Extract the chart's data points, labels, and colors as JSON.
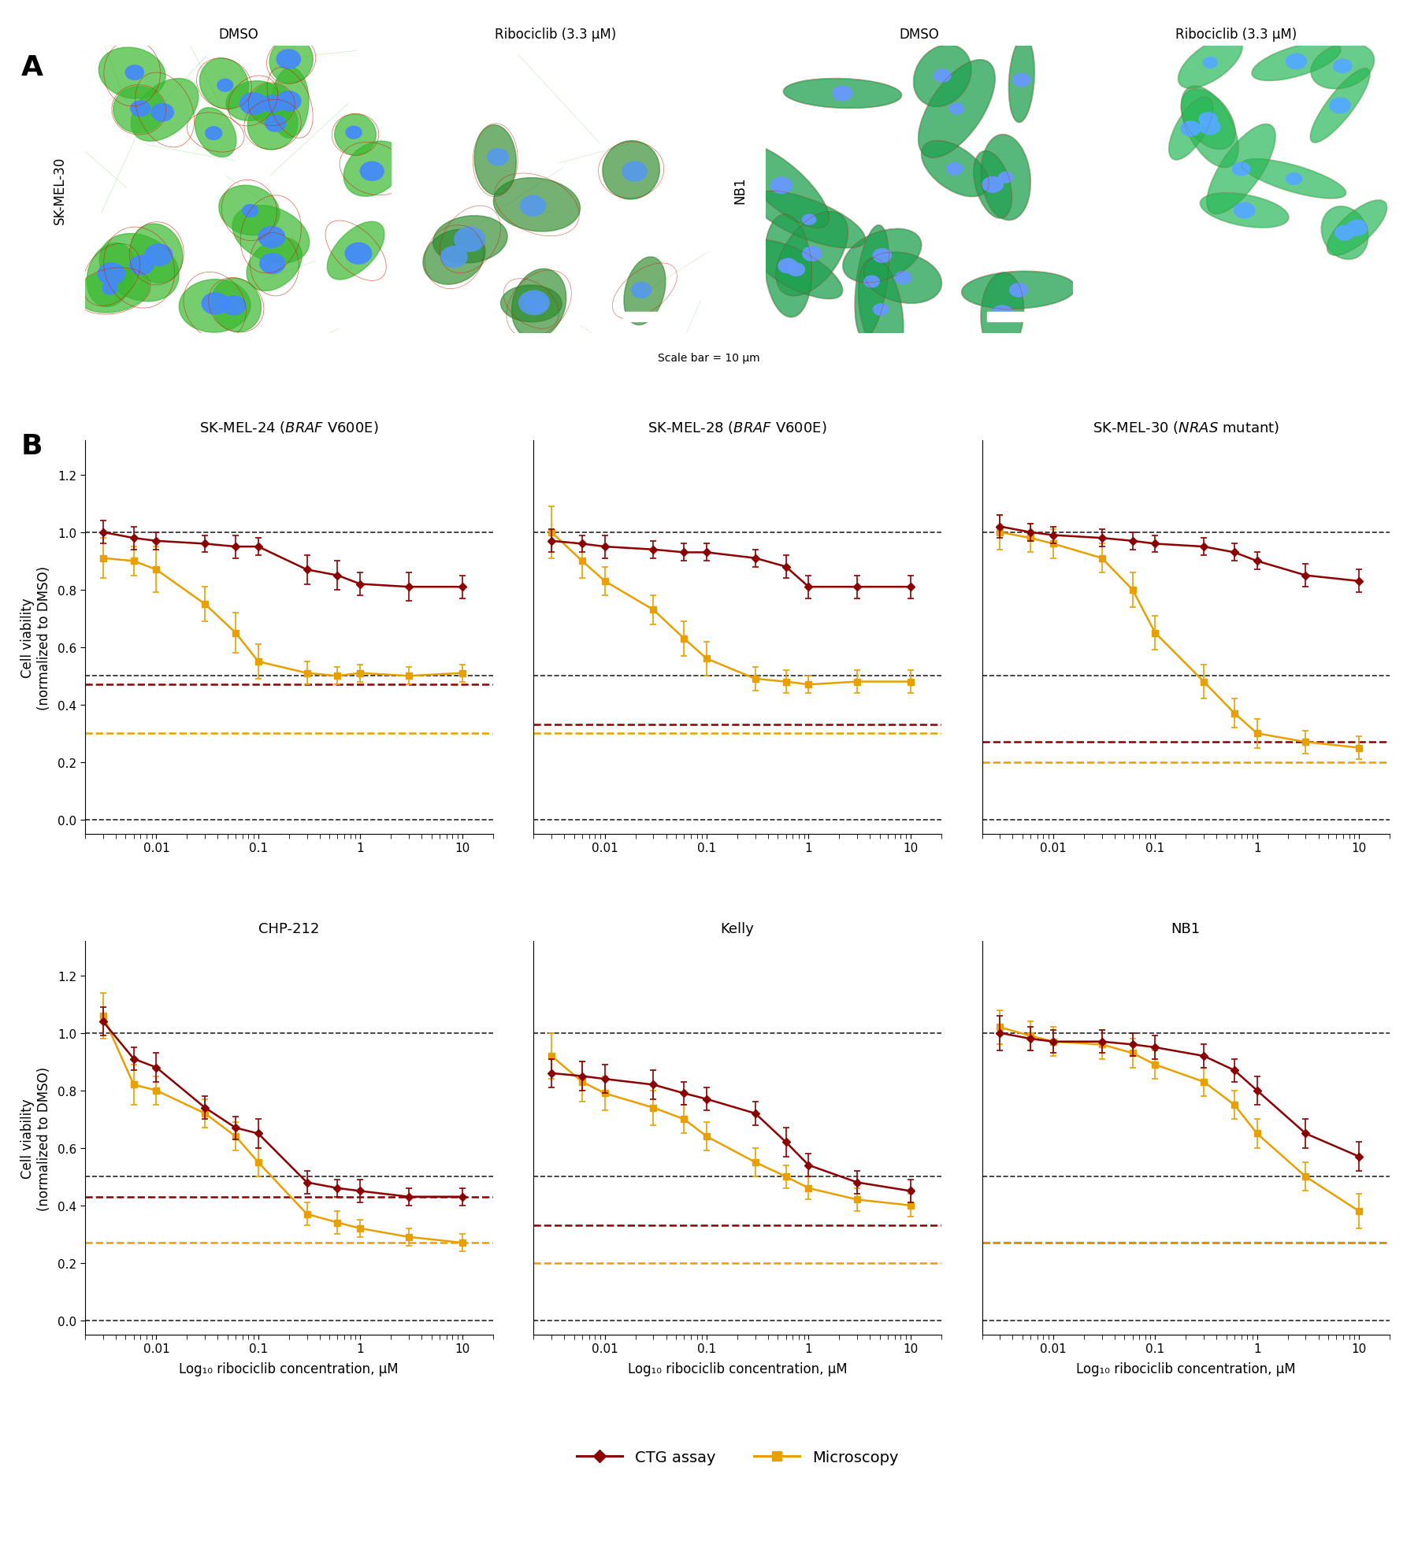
{
  "panel_A": {
    "label": "A",
    "col_titles": [
      "DMSO",
      "Ribociclib (3.3 μM)",
      "DMSO",
      "Ribociclib (3.3 μM)"
    ],
    "row_label_left": "SK-MEL-30",
    "row_label_right": "NB1",
    "scale_bar_text": "Scale bar = 10 μm",
    "img_bg_colors": [
      "#1a6b20",
      "#0d4d14",
      "#0a3d10",
      "#0d5014"
    ],
    "img_bright": [
      1.0,
      0.6,
      0.5,
      0.8
    ]
  },
  "panel_B": {
    "label": "B",
    "subplots": [
      {
        "title_pre": "SK-MEL-24 (",
        "title_italic": "BRAF",
        "title_post": " V600E)",
        "x_log": [
          0.003,
          0.006,
          0.01,
          0.03,
          0.06,
          0.1,
          0.3,
          0.6,
          1.0,
          3.0,
          10.0
        ],
        "ctg_y": [
          1.0,
          0.98,
          0.97,
          0.96,
          0.95,
          0.95,
          0.87,
          0.85,
          0.82,
          0.81,
          0.81
        ],
        "ctg_err": [
          0.04,
          0.04,
          0.03,
          0.03,
          0.04,
          0.03,
          0.05,
          0.05,
          0.04,
          0.05,
          0.04
        ],
        "mic_y": [
          0.91,
          0.9,
          0.87,
          0.75,
          0.65,
          0.55,
          0.51,
          0.5,
          0.51,
          0.5,
          0.51
        ],
        "mic_err": [
          0.07,
          0.05,
          0.08,
          0.06,
          0.07,
          0.06,
          0.04,
          0.03,
          0.03,
          0.03,
          0.03
        ],
        "hline_black": [
          1.0,
          0.5,
          0.0
        ],
        "hline_ctg": 0.47,
        "hline_mic": 0.3,
        "ylim": [
          -0.05,
          1.32
        ],
        "yticks": [
          0.0,
          0.2,
          0.4,
          0.6,
          0.8,
          1.0,
          1.2
        ]
      },
      {
        "title_pre": "SK-MEL-28 (",
        "title_italic": "BRAF",
        "title_post": " V600E)",
        "x_log": [
          0.003,
          0.006,
          0.01,
          0.03,
          0.06,
          0.1,
          0.3,
          0.6,
          1.0,
          3.0,
          10.0
        ],
        "ctg_y": [
          0.97,
          0.96,
          0.95,
          0.94,
          0.93,
          0.93,
          0.91,
          0.88,
          0.81,
          0.81,
          0.81
        ],
        "ctg_err": [
          0.04,
          0.03,
          0.04,
          0.03,
          0.03,
          0.03,
          0.03,
          0.04,
          0.04,
          0.04,
          0.04
        ],
        "mic_y": [
          1.0,
          0.9,
          0.83,
          0.73,
          0.63,
          0.56,
          0.49,
          0.48,
          0.47,
          0.48,
          0.48
        ],
        "mic_err": [
          0.09,
          0.06,
          0.05,
          0.05,
          0.06,
          0.06,
          0.04,
          0.04,
          0.03,
          0.04,
          0.04
        ],
        "hline_black": [
          1.0,
          0.5,
          0.0
        ],
        "hline_ctg": 0.33,
        "hline_mic": 0.3,
        "ylim": [
          -0.05,
          1.32
        ],
        "yticks": [
          0.0,
          0.2,
          0.4,
          0.6,
          0.8,
          1.0,
          1.2
        ]
      },
      {
        "title_pre": "SK-MEL-30 (",
        "title_italic": "NRAS",
        "title_post": " mutant)",
        "x_log": [
          0.003,
          0.006,
          0.01,
          0.03,
          0.06,
          0.1,
          0.3,
          0.6,
          1.0,
          3.0,
          10.0
        ],
        "ctg_y": [
          1.02,
          1.0,
          0.99,
          0.98,
          0.97,
          0.96,
          0.95,
          0.93,
          0.9,
          0.85,
          0.83
        ],
        "ctg_err": [
          0.04,
          0.03,
          0.03,
          0.03,
          0.03,
          0.03,
          0.03,
          0.03,
          0.03,
          0.04,
          0.04
        ],
        "mic_y": [
          1.0,
          0.98,
          0.96,
          0.91,
          0.8,
          0.65,
          0.48,
          0.37,
          0.3,
          0.27,
          0.25
        ],
        "mic_err": [
          0.06,
          0.05,
          0.05,
          0.05,
          0.06,
          0.06,
          0.06,
          0.05,
          0.05,
          0.04,
          0.04
        ],
        "hline_black": [
          1.0,
          0.5,
          0.0
        ],
        "hline_ctg": 0.27,
        "hline_mic": 0.2,
        "ylim": [
          -0.05,
          1.32
        ],
        "yticks": [
          0.0,
          0.2,
          0.4,
          0.6,
          0.8,
          1.0,
          1.2
        ]
      },
      {
        "title_pre": "CHP-212",
        "title_italic": null,
        "title_post": "",
        "x_log": [
          0.003,
          0.006,
          0.01,
          0.03,
          0.06,
          0.1,
          0.3,
          0.6,
          1.0,
          3.0,
          10.0
        ],
        "ctg_y": [
          1.04,
          0.91,
          0.88,
          0.74,
          0.67,
          0.65,
          0.48,
          0.46,
          0.45,
          0.43,
          0.43
        ],
        "ctg_err": [
          0.05,
          0.04,
          0.05,
          0.04,
          0.04,
          0.05,
          0.04,
          0.03,
          0.04,
          0.03,
          0.03
        ],
        "mic_y": [
          1.06,
          0.82,
          0.8,
          0.72,
          0.64,
          0.55,
          0.37,
          0.34,
          0.32,
          0.29,
          0.27
        ],
        "mic_err": [
          0.08,
          0.07,
          0.05,
          0.05,
          0.05,
          0.05,
          0.04,
          0.04,
          0.03,
          0.03,
          0.03
        ],
        "hline_black": [
          1.0,
          0.5,
          0.0
        ],
        "hline_ctg": 0.43,
        "hline_mic": 0.27,
        "ylim": [
          -0.05,
          1.32
        ],
        "yticks": [
          0.0,
          0.2,
          0.4,
          0.6,
          0.8,
          1.0,
          1.2
        ]
      },
      {
        "title_pre": "Kelly",
        "title_italic": null,
        "title_post": "",
        "x_log": [
          0.003,
          0.006,
          0.01,
          0.03,
          0.06,
          0.1,
          0.3,
          0.6,
          1.0,
          3.0,
          10.0
        ],
        "ctg_y": [
          0.86,
          0.85,
          0.84,
          0.82,
          0.79,
          0.77,
          0.72,
          0.62,
          0.54,
          0.48,
          0.45
        ],
        "ctg_err": [
          0.05,
          0.05,
          0.05,
          0.05,
          0.04,
          0.04,
          0.04,
          0.05,
          0.04,
          0.04,
          0.04
        ],
        "mic_y": [
          0.92,
          0.83,
          0.79,
          0.74,
          0.7,
          0.64,
          0.55,
          0.5,
          0.46,
          0.42,
          0.4
        ],
        "mic_err": [
          0.08,
          0.07,
          0.06,
          0.06,
          0.05,
          0.05,
          0.05,
          0.04,
          0.04,
          0.04,
          0.04
        ],
        "hline_black": [
          1.0,
          0.5,
          0.0
        ],
        "hline_ctg": 0.33,
        "hline_mic": 0.2,
        "ylim": [
          -0.05,
          1.32
        ],
        "yticks": [
          0.0,
          0.2,
          0.4,
          0.6,
          0.8,
          1.0,
          1.2
        ]
      },
      {
        "title_pre": "NB1",
        "title_italic": null,
        "title_post": "",
        "x_log": [
          0.003,
          0.006,
          0.01,
          0.03,
          0.06,
          0.1,
          0.3,
          0.6,
          1.0,
          3.0,
          10.0
        ],
        "ctg_y": [
          1.0,
          0.98,
          0.97,
          0.97,
          0.96,
          0.95,
          0.92,
          0.87,
          0.8,
          0.65,
          0.57
        ],
        "ctg_err": [
          0.06,
          0.04,
          0.04,
          0.04,
          0.04,
          0.04,
          0.04,
          0.04,
          0.05,
          0.05,
          0.05
        ],
        "mic_y": [
          1.02,
          0.99,
          0.97,
          0.96,
          0.93,
          0.89,
          0.83,
          0.75,
          0.65,
          0.5,
          0.38
        ],
        "mic_err": [
          0.06,
          0.05,
          0.05,
          0.05,
          0.05,
          0.05,
          0.05,
          0.05,
          0.05,
          0.05,
          0.06
        ],
        "hline_black": [
          1.0,
          0.5,
          0.0
        ],
        "hline_ctg": 0.27,
        "hline_mic": 0.27,
        "ylim": [
          -0.05,
          1.32
        ],
        "yticks": [
          0.0,
          0.2,
          0.4,
          0.6,
          0.8,
          1.0,
          1.2
        ]
      }
    ]
  },
  "colors": {
    "ctg_color": "#8B0000",
    "mic_color": "#E8A000"
  },
  "legend": {
    "ctg_label": "CTG assay",
    "mic_label": "Microscopy"
  },
  "xlabel": "Log₁₀ ribociclib concentration, μM",
  "ylabel": "Cell viability\n(normalized to DMSO)",
  "fig_bg": "#ffffff"
}
